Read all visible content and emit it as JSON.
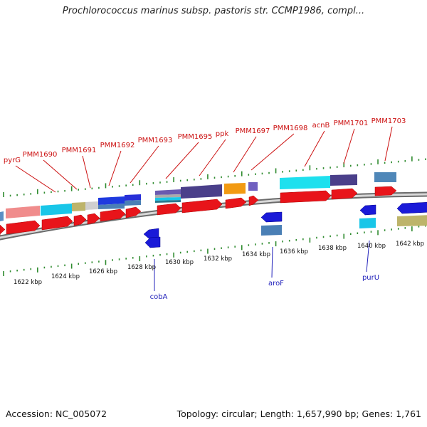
{
  "title": "Prochlorococcus marinus subsp. pastoris str. CCMP1986, compl...",
  "footer": {
    "accession": "Accession: NC_005072",
    "summary": "Topology: circular; Length: 1,657,990 bp; Genes: 1,761"
  },
  "colors": {
    "forward_gene": "#e8141a",
    "reverse_gene": "#1a1ad8",
    "forward_label": "#cc1111",
    "reverse_label": "#2222bb",
    "ticks": "#2e8b2e",
    "backbone": "#999999"
  },
  "forward_labels": [
    "pyrG",
    "PMM1690",
    "PMM1691",
    "PMM1692",
    "PMM1693",
    "PMM1695",
    "ppk",
    "PMM1697",
    "PMM1698",
    "acnB",
    "PMM1701",
    "PMM1703"
  ],
  "reverse_labels": [
    "cobA",
    "aroF",
    "purU"
  ],
  "kbp_labels": [
    "1622 kbp",
    "1624 kbp",
    "1626 kbp",
    "1628 kbp",
    "1630 kbp",
    "1632 kbp",
    "1634 kbp",
    "1636 kbp",
    "1638 kbp",
    "1640 kbp",
    "1642 kbp"
  ]
}
